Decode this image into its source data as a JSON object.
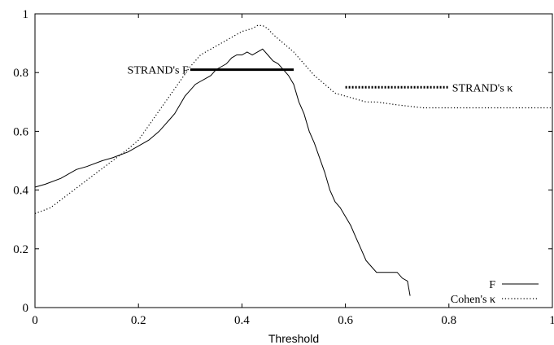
{
  "chart_data": {
    "type": "line",
    "xlabel": "Threshold",
    "ylabel": "",
    "xlim": [
      0,
      1
    ],
    "ylim": [
      0,
      1
    ],
    "x_ticks": [
      "0",
      "0.2",
      "0.4",
      "0.6",
      "0.8",
      "1"
    ],
    "y_ticks": [
      "0",
      "0.2",
      "0.4",
      "0.6",
      "0.8",
      "1"
    ],
    "grid": false,
    "legend_position": "bottom-right",
    "series": [
      {
        "name": "F",
        "style": "solid",
        "color": "#000000",
        "x": [
          0,
          0.02,
          0.05,
          0.08,
          0.1,
          0.13,
          0.15,
          0.18,
          0.2,
          0.22,
          0.24,
          0.25,
          0.26,
          0.27,
          0.28,
          0.29,
          0.3,
          0.31,
          0.32,
          0.33,
          0.34,
          0.35,
          0.36,
          0.37,
          0.38,
          0.39,
          0.4,
          0.41,
          0.42,
          0.43,
          0.44,
          0.45,
          0.46,
          0.47,
          0.48,
          0.49,
          0.5,
          0.51,
          0.52,
          0.53,
          0.54,
          0.55,
          0.56,
          0.57,
          0.58,
          0.59,
          0.6,
          0.61,
          0.62,
          0.63,
          0.64,
          0.65,
          0.66,
          0.68,
          0.7,
          0.71,
          0.72,
          0.725
        ],
        "y": [
          0.41,
          0.42,
          0.44,
          0.47,
          0.48,
          0.5,
          0.51,
          0.53,
          0.55,
          0.57,
          0.6,
          0.62,
          0.64,
          0.66,
          0.69,
          0.72,
          0.74,
          0.76,
          0.77,
          0.78,
          0.79,
          0.81,
          0.82,
          0.83,
          0.85,
          0.86,
          0.86,
          0.87,
          0.86,
          0.87,
          0.88,
          0.86,
          0.84,
          0.83,
          0.81,
          0.79,
          0.76,
          0.7,
          0.66,
          0.6,
          0.56,
          0.51,
          0.46,
          0.4,
          0.36,
          0.34,
          0.31,
          0.28,
          0.24,
          0.2,
          0.16,
          0.14,
          0.12,
          0.12,
          0.12,
          0.1,
          0.09,
          0.04
        ]
      },
      {
        "name": "Cohen's κ",
        "style": "dotted",
        "color": "#000000",
        "x": [
          0,
          0.03,
          0.06,
          0.09,
          0.12,
          0.15,
          0.18,
          0.2,
          0.22,
          0.24,
          0.26,
          0.28,
          0.3,
          0.32,
          0.34,
          0.36,
          0.38,
          0.4,
          0.42,
          0.43,
          0.44,
          0.45,
          0.46,
          0.48,
          0.5,
          0.52,
          0.54,
          0.56,
          0.58,
          0.6,
          0.62,
          0.64,
          0.66,
          0.7,
          0.75,
          0.8,
          0.85,
          0.9,
          0.95,
          1.0
        ],
        "y": [
          0.32,
          0.34,
          0.38,
          0.42,
          0.46,
          0.5,
          0.54,
          0.57,
          0.62,
          0.67,
          0.72,
          0.77,
          0.82,
          0.86,
          0.88,
          0.9,
          0.92,
          0.94,
          0.95,
          0.96,
          0.96,
          0.95,
          0.93,
          0.9,
          0.87,
          0.83,
          0.79,
          0.76,
          0.73,
          0.72,
          0.71,
          0.7,
          0.7,
          0.69,
          0.68,
          0.68,
          0.68,
          0.68,
          0.68,
          0.68
        ]
      }
    ],
    "reference_lines": [
      {
        "label": "STRAND's F",
        "style": "solid-thick",
        "x_start": 0.3,
        "x_end": 0.5,
        "y": 0.81,
        "label_side": "left"
      },
      {
        "label": "STRAND's κ",
        "style": "dotted-thick",
        "x_start": 0.6,
        "x_end": 0.8,
        "y": 0.75,
        "label_side": "right"
      }
    ],
    "legend": [
      {
        "label": "F",
        "style": "solid"
      },
      {
        "label": "Cohen's κ",
        "style": "dotted"
      }
    ]
  }
}
